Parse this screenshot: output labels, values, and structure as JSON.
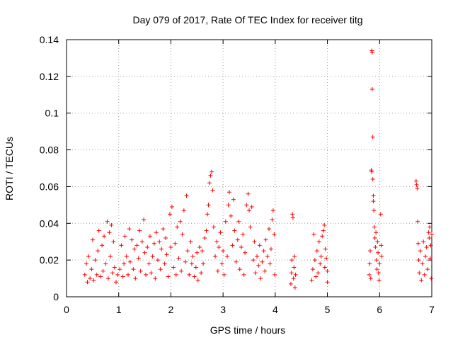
{
  "chart_data": {
    "type": "scatter",
    "title": "Day 079 of 2017, Rate Of TEC Index for receiver titg",
    "xlabel": "GPS time / hours",
    "ylabel": "ROTI / TECUs",
    "xlim": [
      0,
      7
    ],
    "ylim": [
      0,
      0.14
    ],
    "xticks": [
      0,
      1,
      2,
      3,
      4,
      5,
      6,
      7
    ],
    "yticks": [
      0,
      0.02,
      0.04,
      0.06,
      0.08,
      0.1,
      0.12,
      0.14
    ],
    "xtick_labels": [
      "0",
      "1",
      "2",
      "3",
      "4",
      "5",
      "6",
      "7"
    ],
    "ytick_labels": [
      "0",
      "0.02",
      "0.04",
      "0.06",
      "0.08",
      "0.1",
      "0.12",
      "0.14"
    ],
    "grid": true,
    "legend": "none",
    "marker": "+",
    "color": "#ff0000",
    "series": [
      {
        "name": "ROTI",
        "points": [
          [
            0.35,
            0.012
          ],
          [
            0.38,
            0.018
          ],
          [
            0.4,
            0.008
          ],
          [
            0.42,
            0.022
          ],
          [
            0.45,
            0.01
          ],
          [
            0.48,
            0.015
          ],
          [
            0.5,
            0.031
          ],
          [
            0.52,
            0.009
          ],
          [
            0.55,
            0.02
          ],
          [
            0.58,
            0.012
          ],
          [
            0.6,
            0.025
          ],
          [
            0.62,
            0.036
          ],
          [
            0.65,
            0.011
          ],
          [
            0.68,
            0.028
          ],
          [
            0.7,
            0.014
          ],
          [
            0.72,
            0.033
          ],
          [
            0.75,
            0.018
          ],
          [
            0.78,
            0.041
          ],
          [
            0.8,
            0.01
          ],
          [
            0.82,
            0.035
          ],
          [
            0.84,
            0.022
          ],
          [
            0.86,
            0.039
          ],
          [
            0.88,
            0.013
          ],
          [
            0.9,
            0.03
          ],
          [
            0.92,
            0.016
          ],
          [
            0.95,
            0.008
          ],
          [
            0.98,
            0.012
          ],
          [
            1.02,
            0.015
          ],
          [
            1.05,
            0.028
          ],
          [
            1.08,
            0.011
          ],
          [
            1.1,
            0.018
          ],
          [
            1.12,
            0.033
          ],
          [
            1.15,
            0.022
          ],
          [
            1.18,
            0.012
          ],
          [
            1.2,
            0.037
          ],
          [
            1.22,
            0.019
          ],
          [
            1.25,
            0.031
          ],
          [
            1.28,
            0.015
          ],
          [
            1.3,
            0.026
          ],
          [
            1.32,
            0.01
          ],
          [
            1.35,
            0.028
          ],
          [
            1.38,
            0.021
          ],
          [
            1.4,
            0.036
          ],
          [
            1.42,
            0.014
          ],
          [
            1.45,
            0.03
          ],
          [
            1.48,
            0.042
          ],
          [
            1.5,
            0.024
          ],
          [
            1.52,
            0.012
          ],
          [
            1.55,
            0.027
          ],
          [
            1.58,
            0.018
          ],
          [
            1.6,
            0.033
          ],
          [
            1.62,
            0.013
          ],
          [
            1.65,
            0.022
          ],
          [
            1.68,
            0.029
          ],
          [
            1.7,
            0.01
          ],
          [
            1.72,
            0.035
          ],
          [
            1.75,
            0.02
          ],
          [
            1.78,
            0.03
          ],
          [
            1.8,
            0.015
          ],
          [
            1.82,
            0.026
          ],
          [
            1.85,
            0.037
          ],
          [
            1.88,
            0.018
          ],
          [
            1.9,
            0.032
          ],
          [
            1.92,
            0.023
          ],
          [
            1.95,
            0.011
          ],
          [
            1.98,
            0.045
          ],
          [
            2.0,
            0.027
          ],
          [
            2.02,
            0.049
          ],
          [
            2.05,
            0.016
          ],
          [
            2.08,
            0.029
          ],
          [
            2.1,
            0.012
          ],
          [
            2.12,
            0.038
          ],
          [
            2.15,
            0.021
          ],
          [
            2.18,
            0.041
          ],
          [
            2.2,
            0.014
          ],
          [
            2.22,
            0.034
          ],
          [
            2.25,
            0.047
          ],
          [
            2.28,
            0.019
          ],
          [
            2.3,
            0.055
          ],
          [
            2.32,
            0.025
          ],
          [
            2.35,
            0.012
          ],
          [
            2.38,
            0.03
          ],
          [
            2.4,
            0.018
          ],
          [
            2.42,
            0.022
          ],
          [
            2.45,
            0.011
          ],
          [
            2.48,
            0.016
          ],
          [
            2.5,
            0.024
          ],
          [
            2.52,
            0.009
          ],
          [
            2.55,
            0.027
          ],
          [
            2.58,
            0.013
          ],
          [
            2.6,
            0.025
          ],
          [
            2.62,
            0.018
          ],
          [
            2.65,
            0.032
          ],
          [
            2.68,
            0.036
          ],
          [
            2.7,
            0.045
          ],
          [
            2.72,
            0.05
          ],
          [
            2.74,
            0.062
          ],
          [
            2.76,
            0.066
          ],
          [
            2.78,
            0.068
          ],
          [
            2.8,
            0.058
          ],
          [
            2.82,
            0.038
          ],
          [
            2.85,
            0.022
          ],
          [
            2.88,
            0.03
          ],
          [
            2.9,
            0.014
          ],
          [
            2.92,
            0.027
          ],
          [
            2.95,
            0.035
          ],
          [
            2.98,
            0.018
          ],
          [
            3.0,
            0.025
          ],
          [
            3.02,
            0.012
          ],
          [
            3.05,
            0.041
          ],
          [
            3.08,
            0.022
          ],
          [
            3.1,
            0.05
          ],
          [
            3.12,
            0.057
          ],
          [
            3.15,
            0.044
          ],
          [
            3.18,
            0.028
          ],
          [
            3.2,
            0.053
          ],
          [
            3.22,
            0.036
          ],
          [
            3.25,
            0.019
          ],
          [
            3.28,
            0.031
          ],
          [
            3.3,
            0.041
          ],
          [
            3.32,
            0.015
          ],
          [
            3.35,
            0.027
          ],
          [
            3.38,
            0.034
          ],
          [
            3.4,
            0.012
          ],
          [
            3.42,
            0.024
          ],
          [
            3.45,
            0.05
          ],
          [
            3.48,
            0.056
          ],
          [
            3.5,
            0.047
          ],
          [
            3.52,
            0.038
          ],
          [
            3.55,
            0.049
          ],
          [
            3.58,
            0.02
          ],
          [
            3.6,
            0.03
          ],
          [
            3.62,
            0.013
          ],
          [
            3.65,
            0.022
          ],
          [
            3.68,
            0.017
          ],
          [
            3.7,
            0.028
          ],
          [
            3.72,
            0.01
          ],
          [
            3.75,
            0.019
          ],
          [
            3.78,
            0.025
          ],
          [
            3.8,
            0.014
          ],
          [
            3.82,
            0.031
          ],
          [
            3.85,
            0.022
          ],
          [
            3.88,
            0.037
          ],
          [
            3.9,
            0.018
          ],
          [
            3.92,
            0.026
          ],
          [
            3.94,
            0.042
          ],
          [
            3.96,
            0.047
          ],
          [
            3.98,
            0.034
          ],
          [
            3.99,
            0.012
          ],
          [
            4.3,
            0.007
          ],
          [
            4.31,
            0.013
          ],
          [
            4.32,
            0.02
          ],
          [
            4.33,
            0.045
          ],
          [
            4.34,
            0.043
          ],
          [
            4.35,
            0.01
          ],
          [
            4.36,
            0.016
          ],
          [
            4.37,
            0.022
          ],
          [
            4.38,
            0.005
          ],
          [
            4.39,
            0.012
          ],
          [
            4.7,
            0.009
          ],
          [
            4.72,
            0.015
          ],
          [
            4.74,
            0.034
          ],
          [
            4.76,
            0.02
          ],
          [
            4.78,
            0.011
          ],
          [
            4.8,
            0.025
          ],
          [
            4.82,
            0.013
          ],
          [
            4.84,
            0.03
          ],
          [
            4.86,
            0.018
          ],
          [
            4.88,
            0.022
          ],
          [
            4.9,
            0.033
          ],
          [
            4.92,
            0.036
          ],
          [
            4.94,
            0.039
          ],
          [
            4.95,
            0.016
          ],
          [
            4.96,
            0.026
          ],
          [
            4.98,
            0.021
          ],
          [
            5.0,
            0.014
          ],
          [
            5.0,
            0.008
          ],
          [
            5.8,
            0.012
          ],
          [
            5.81,
            0.018
          ],
          [
            5.82,
            0.025
          ],
          [
            5.83,
            0.01
          ],
          [
            5.84,
            0.069
          ],
          [
            5.85,
            0.068
          ],
          [
            5.85,
            0.134
          ],
          [
            5.86,
            0.133
          ],
          [
            5.86,
            0.113
          ],
          [
            5.87,
            0.087
          ],
          [
            5.87,
            0.064
          ],
          [
            5.88,
            0.055
          ],
          [
            5.88,
            0.052
          ],
          [
            5.89,
            0.047
          ],
          [
            5.9,
            0.038
          ],
          [
            5.91,
            0.032
          ],
          [
            5.92,
            0.027
          ],
          [
            5.93,
            0.035
          ],
          [
            5.94,
            0.02
          ],
          [
            5.95,
            0.015
          ],
          [
            5.96,
            0.03
          ],
          [
            5.97,
            0.024
          ],
          [
            5.98,
            0.013
          ],
          [
            5.99,
            0.009
          ],
          [
            6.0,
            0.018
          ],
          [
            6.02,
            0.045
          ],
          [
            6.03,
            0.028
          ],
          [
            6.04,
            0.022
          ],
          [
            6.7,
            0.063
          ],
          [
            6.71,
            0.061
          ],
          [
            6.72,
            0.059
          ],
          [
            6.73,
            0.041
          ],
          [
            6.74,
            0.029
          ],
          [
            6.75,
            0.02
          ],
          [
            6.76,
            0.013
          ],
          [
            6.78,
            0.025
          ],
          [
            6.8,
            0.009
          ],
          [
            6.82,
            0.018
          ],
          [
            6.84,
            0.03
          ],
          [
            6.86,
            0.012
          ],
          [
            6.88,
            0.022
          ],
          [
            6.9,
            0.027
          ],
          [
            6.92,
            0.015
          ],
          [
            6.94,
            0.035
          ],
          [
            6.95,
            0.032
          ],
          [
            6.96,
            0.038
          ],
          [
            6.97,
            0.021
          ],
          [
            6.98,
            0.028
          ],
          [
            6.99,
            0.01
          ],
          [
            7.0,
            0.034
          ]
        ]
      }
    ]
  }
}
